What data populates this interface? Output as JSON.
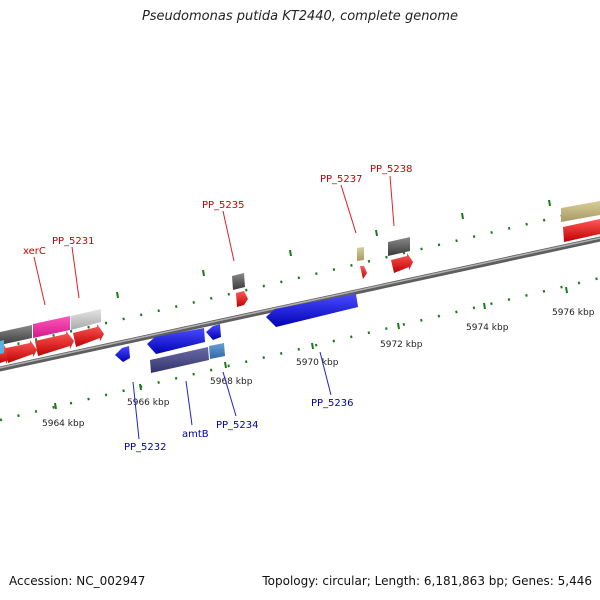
{
  "title": "Pseudomonas putida KT2440, complete genome",
  "footer": {
    "accession": "Accession: NC_002947",
    "summary": "Topology: circular; Length: 6,181,863 bp; Genes: 5,446"
  },
  "colors": {
    "backbone": "#8a8a8a",
    "tick": "#1a7a1a",
    "label_forward": "#cc0000",
    "label_reverse": "#0000aa",
    "leader_forward": "#dd2222",
    "leader_reverse": "#2222cc"
  },
  "scale_labels": [
    "5964 kbp",
    "5966 kbp",
    "5968 kbp",
    "5970 kbp",
    "5972 kbp",
    "5974 kbp",
    "5976 kbp"
  ],
  "gene_labels": {
    "forward": [
      "xerC",
      "PP_5231",
      "PP_5235",
      "PP_5237",
      "PP_5238"
    ],
    "reverse": [
      "PP_5232",
      "amtB",
      "PP_5234",
      "PP_5236"
    ]
  }
}
